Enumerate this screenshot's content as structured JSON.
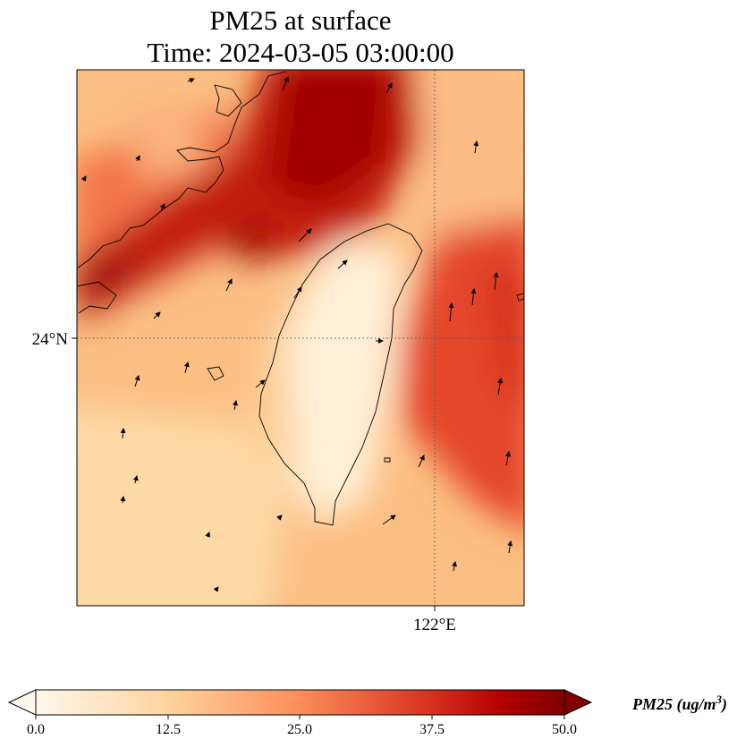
{
  "figure": {
    "title_line1": "PM25 at surface",
    "title_line2": "Time: 2024-03-05 03:00:00"
  },
  "map": {
    "lat_label": "24°N",
    "lon_label": "122°E",
    "gridline_style": "dotted"
  },
  "colorbar": {
    "label": "PM25 (ug/m",
    "label_superscript": "3",
    "label_close": ")",
    "ticks": [
      "0.0",
      "12.5",
      "25.0",
      "37.5",
      "50.0"
    ],
    "extend": "both",
    "colormap_stops": [
      "#fff7ec",
      "#fdd49e",
      "#fc8d59",
      "#d7301f",
      "#b30000",
      "#7f0000"
    ]
  }
}
